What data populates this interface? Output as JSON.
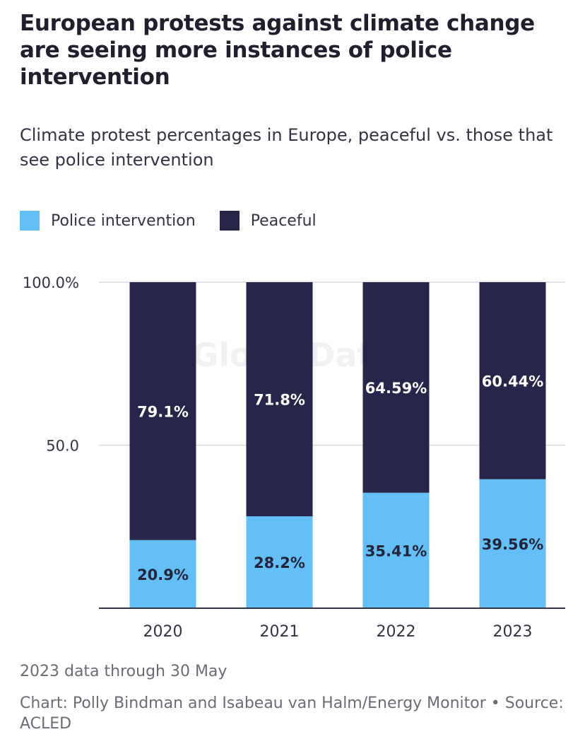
{
  "header": {
    "title": "European protests against climate change are seeing more instances of police intervention",
    "subtitle": "Climate protest percentages in Europe, peaceful vs. those that see police intervention"
  },
  "watermark": "GlobalData",
  "footer": {
    "note": "2023 data through 30 May",
    "credit": "Chart: Polly Bindman and Isabeau van Halm/Energy Monitor • Source: ACLED"
  },
  "chart_data": {
    "type": "bar",
    "stacked": true,
    "categories": [
      "2020",
      "2021",
      "2022",
      "2023"
    ],
    "series": [
      {
        "name": "Police intervention",
        "color": "#63bff5",
        "values": [
          20.9,
          28.2,
          35.41,
          39.56
        ],
        "labels": [
          "20.9%",
          "28.2%",
          "35.41%",
          "39.56%"
        ]
      },
      {
        "name": "Peaceful",
        "color": "#27264a",
        "values": [
          79.1,
          71.8,
          64.59,
          60.44
        ],
        "labels": [
          "79.1%",
          "71.8%",
          "64.59%",
          "60.44%"
        ]
      }
    ],
    "yticks": [
      {
        "value": 100,
        "label": "100.0%"
      },
      {
        "value": 50,
        "label": "50.0"
      }
    ],
    "ylim": [
      0,
      100
    ],
    "grid": true,
    "legend_position": "top-left"
  }
}
